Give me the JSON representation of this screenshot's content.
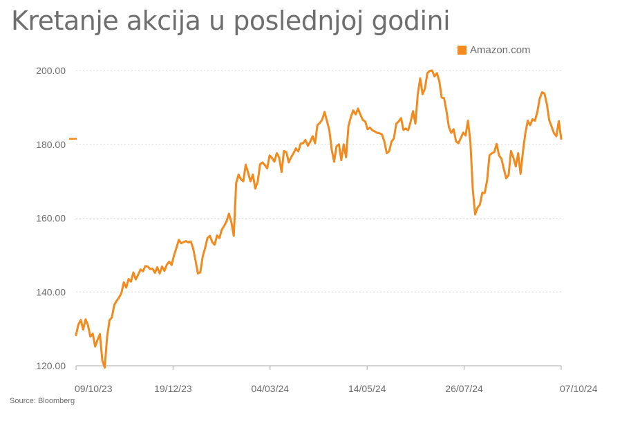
{
  "chart_data": {
    "type": "line",
    "title": "Kretanje akcija u poslednjoj godini",
    "source": "Source: Bloomberg",
    "x_ticks": [
      "09/10/23",
      "19/12/23",
      "04/03/24",
      "14/05/24",
      "26/07/24",
      "07/10/24"
    ],
    "y_ticks": [
      "120.00",
      "140.00",
      "160.00",
      "180.00",
      "200.00"
    ],
    "ylim": [
      120,
      200
    ],
    "grid": true,
    "legend": "top-right",
    "color": "#f28a1e",
    "series": [
      {
        "name": "Amazon.com",
        "x_start": "2023-10-09",
        "x_end": "2024-10-07",
        "values": [
          128.3,
          131.2,
          132.4,
          129.8,
          132.6,
          131.0,
          127.9,
          128.7,
          125.2,
          127.0,
          128.6,
          121.4,
          119.5,
          127.8,
          132.3,
          133.1,
          136.5,
          137.6,
          138.5,
          139.7,
          142.6,
          141.2,
          143.5,
          142.8,
          145.3,
          143.4,
          144.7,
          146.1,
          145.6,
          147.0,
          146.9,
          146.2,
          146.3,
          145.2,
          146.7,
          145.0,
          146.9,
          145.7,
          147.4,
          148.2,
          147.3,
          149.9,
          151.9,
          154.1,
          153.2,
          153.5,
          153.8,
          153.4,
          153.7,
          151.8,
          148.5,
          145.0,
          145.3,
          149.6,
          151.9,
          154.6,
          155.2,
          153.5,
          152.8,
          155.3,
          154.6,
          156.9,
          157.9,
          159.2,
          161.2,
          158.9,
          155.2,
          169.5,
          171.8,
          170.5,
          170.0,
          174.5,
          172.3,
          170.0,
          171.8,
          168.0,
          169.8,
          174.6,
          175.1,
          174.4,
          173.5,
          177.0,
          176.3,
          175.3,
          177.6,
          176.4,
          172.5,
          178.2,
          177.9,
          175.1,
          176.5,
          177.6,
          178.9,
          178.1,
          180.2,
          180.3,
          181.2,
          179.6,
          180.7,
          182.2,
          180.3,
          185.2,
          185.8,
          186.7,
          188.8,
          186.3,
          183.8,
          178.5,
          175.3,
          179.5,
          180.0,
          175.7,
          180.0,
          176.5,
          185.0,
          187.4,
          189.2,
          188.1,
          189.7,
          188.0,
          186.6,
          186.2,
          184.1,
          184.5,
          183.8,
          183.5,
          183.1,
          183.0,
          182.7,
          180.8,
          177.6,
          178.1,
          180.7,
          181.6,
          185.6,
          186.2,
          187.1,
          183.9,
          184.3,
          183.8,
          186.1,
          189.0,
          185.6,
          193.6,
          197.9,
          193.6,
          195.1,
          199.3,
          199.9,
          200.0,
          198.4,
          199.3,
          197.1,
          192.7,
          192.5,
          189.0,
          184.7,
          183.1,
          184.1,
          180.8,
          180.3,
          181.7,
          183.2,
          182.4,
          186.4,
          180.8,
          167.9,
          161.0,
          162.8,
          163.7,
          166.9,
          166.8,
          170.2,
          177.0,
          177.6,
          177.9,
          180.1,
          177.0,
          176.1,
          173.3,
          170.8,
          171.7,
          178.2,
          176.4,
          174.0,
          177.6,
          172.0,
          178.0,
          183.0,
          186.4,
          185.2,
          186.8,
          186.4,
          188.7,
          192.4,
          194.1,
          193.8,
          190.9,
          186.5,
          184.8,
          183.0,
          182.2,
          186.3,
          181.5
        ]
      }
    ]
  }
}
